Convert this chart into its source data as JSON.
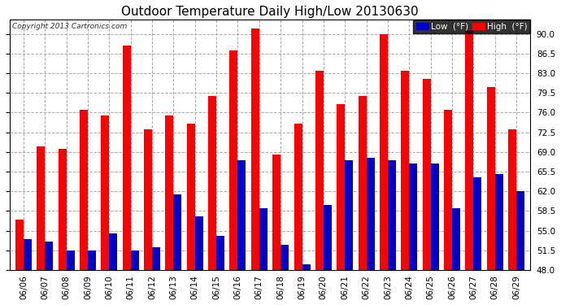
{
  "title": "Outdoor Temperature Daily High/Low 20130630",
  "copyright": "Copyright 2013 Cartronics.com",
  "legend_low": "Low  (°F)",
  "legend_high": "High  (°F)",
  "ylim": [
    48.0,
    92.5
  ],
  "yticks": [
    48.0,
    51.5,
    55.0,
    58.5,
    62.0,
    65.5,
    69.0,
    72.5,
    76.0,
    79.5,
    83.0,
    86.5,
    90.0
  ],
  "dates": [
    "06/06",
    "06/07",
    "06/08",
    "06/09",
    "06/10",
    "06/11",
    "06/12",
    "06/13",
    "06/14",
    "06/15",
    "06/16",
    "06/17",
    "06/18",
    "06/19",
    "06/20",
    "06/21",
    "06/22",
    "06/23",
    "06/24",
    "06/25",
    "06/26",
    "06/27",
    "06/28",
    "06/29"
  ],
  "highs": [
    57.0,
    70.0,
    69.5,
    76.5,
    75.5,
    88.0,
    73.0,
    75.5,
    74.0,
    79.0,
    87.0,
    91.0,
    68.5,
    74.0,
    83.5,
    77.5,
    79.0,
    90.0,
    83.5,
    82.0,
    76.5,
    90.5,
    80.5,
    73.0
  ],
  "lows": [
    53.5,
    53.0,
    51.5,
    51.5,
    54.5,
    51.5,
    52.0,
    61.5,
    57.5,
    54.0,
    67.5,
    59.0,
    52.5,
    49.0,
    59.5,
    67.5,
    68.0,
    67.5,
    67.0,
    67.0,
    59.0,
    64.5,
    65.0,
    62.0
  ],
  "bar_color_high": "#ff0000",
  "bar_color_low": "#0000cc",
  "background_color": "#ffffff",
  "grid_color": "#aaaaaa",
  "title_fontsize": 11,
  "tick_fontsize": 7.5,
  "bar_width": 0.38,
  "figsize": [
    6.9,
    3.75
  ],
  "dpi": 100
}
